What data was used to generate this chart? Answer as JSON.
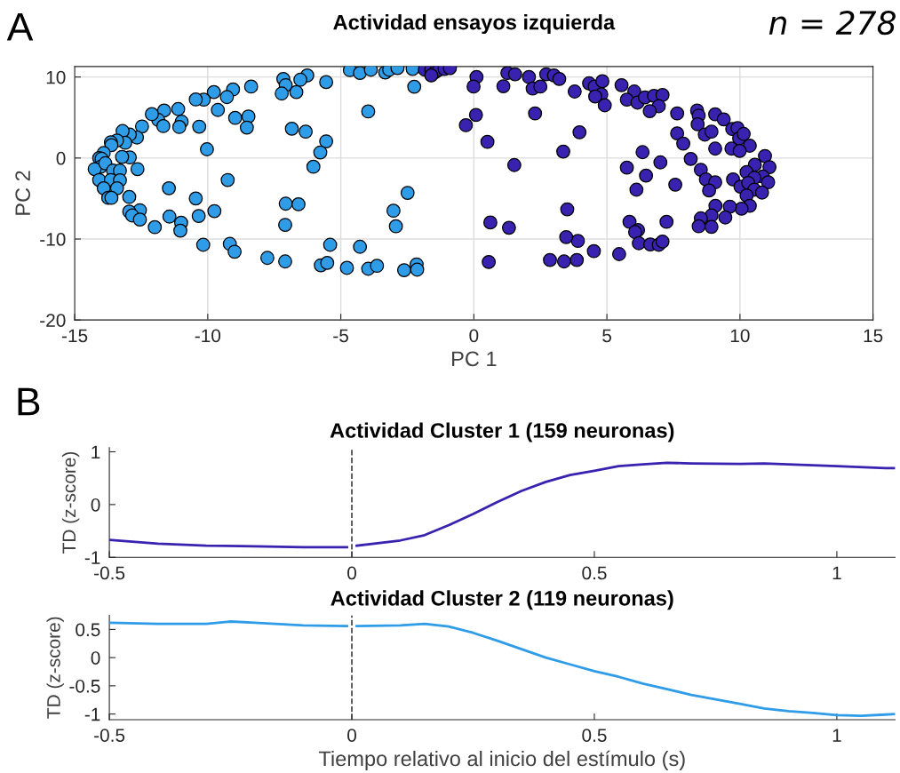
{
  "chart_data": [
    {
      "type": "scatter",
      "title": "Actividad ensayos izquierda",
      "xlabel": "PC 1",
      "ylabel": "PC 2",
      "annotations": [
        "A",
        "n = 278"
      ],
      "xlim": [
        -15,
        15
      ],
      "ylim": [
        -20,
        11.3
      ],
      "xticks": [
        -15,
        -10,
        -5,
        0,
        5,
        10,
        15
      ],
      "yticks": [
        -20,
        -10,
        0,
        10
      ],
      "grid": true,
      "marker": "circle",
      "series": [
        {
          "color": "#2f9ce8",
          "x": [
            -4.66,
            -4.28,
            -3.87,
            -3.33,
            -3.18,
            -2.87,
            -2.3,
            -2.24,
            -3.97,
            -5.55,
            -6.26,
            -6.52,
            -7.16,
            -7.07,
            -7.22,
            -6.67,
            -8.37,
            -9.05,
            -9.28,
            -9.77,
            -10.15,
            -10.45,
            -9.62,
            -8.97,
            -8.47,
            -8.53,
            -10.32,
            -10.03,
            -6.84,
            -6.32,
            -5.55,
            -5.77,
            -6.03,
            -9.25,
            -11.11,
            -10.98,
            -11.07,
            -11.64,
            -11.86,
            -11.67,
            -12.1,
            -12.47,
            -12.66,
            -12.93,
            -13.2,
            -13.1,
            -13.41,
            -13.64,
            -13.62,
            -13.91,
            -14.08,
            -13.99,
            -14.02,
            -14.25,
            -13.85,
            -13.56,
            -13.3,
            -12.93,
            -13.22,
            -12.64,
            -14.08,
            -13.64,
            -13.3,
            -13.91,
            -13.41,
            -13.74,
            -13.62,
            -12.95,
            -11.46,
            -10.45,
            -9.75,
            -10.34,
            -11.44,
            -11.0,
            -11.03,
            -11.99,
            -12.55,
            -12.95,
            -12.84,
            -12.55,
            -7.07,
            -6.59,
            -7.09,
            -10.17,
            -9.17,
            -8.99,
            -7.76,
            -7.09,
            -5.75,
            -5.51,
            -5.4,
            -4.77,
            -4.28,
            -3.97,
            -3.64,
            -2.62,
            -2.15,
            -2.13,
            -2.49,
            -3.02,
            -2.93
          ],
          "values": [
            10.85,
            10.5,
            10.9,
            10.56,
            10.9,
            11.1,
            11.0,
            8.8,
            5.75,
            9.37,
            10.2,
            9.66,
            9.76,
            9.0,
            7.96,
            8.14,
            8.82,
            8.46,
            7.52,
            8.14,
            7.2,
            7.23,
            5.93,
            4.95,
            5.13,
            3.76,
            3.87,
            1.08,
            3.62,
            3.25,
            2.06,
            0.69,
            -1.08,
            -2.71,
            6.04,
            4.48,
            3.83,
            5.86,
            4.7,
            3.94,
            5.42,
            3.9,
            2.53,
            2.89,
            3.33,
            1.88,
            2.17,
            1.95,
            1.59,
            0.61,
            0,
            -0.1,
            -1.08,
            -1.37,
            -0.65,
            -1.55,
            -1.55,
            0.07,
            0.14,
            -1.37,
            -2.71,
            -2.71,
            -2.75,
            -3.73,
            -3.73,
            -4.92,
            -4.92,
            -4.81,
            -3.73,
            -4.99,
            -6.55,
            -7.16,
            -7.23,
            -7.99,
            -8.97,
            -8.54,
            -6.44,
            -6.62,
            -7.09,
            -7.6,
            -5.64,
            -5.71,
            -8.25,
            -10.71,
            -10.6,
            -11.57,
            -12.33,
            -12.77,
            -13.24,
            -12.95,
            -10.71,
            -13.56,
            -10.96,
            -13.67,
            -13.31,
            -13.85,
            -13.13,
            -13.78,
            -4.3,
            -6.51,
            -8.43
          ]
        },
        {
          "color": "#3a22b0",
          "x": [
            -1.84,
            -1.6,
            -1.45,
            -1.3,
            -1.1,
            -0.9,
            -1.6,
            0.1,
            -0.01,
            0.08,
            -0.3,
            0.51,
            1.52,
            1.26,
            1.55,
            1.11,
            2.07,
            2.21,
            2.5,
            2.3,
            2.72,
            3.01,
            3.21,
            3.36,
            3.79,
            3.97,
            4.33,
            4.54,
            4.83,
            4.79,
            4.56,
            4.92,
            5.55,
            6.03,
            5.75,
            6.15,
            6.43,
            6.77,
            7.09,
            6.95,
            6.61,
            7.64,
            8.39,
            8.45,
            8.41,
            8.68,
            8.93,
            9.07,
            9.39,
            9.71,
            9.91,
            9.97,
            10.14,
            10.37,
            9.68,
            9.99,
            9.07,
            7.64,
            7.87,
            8.15,
            8.53,
            6.34,
            7.01,
            5.75,
            6.47,
            6.11,
            7.57,
            8.72,
            9.07,
            8.84,
            10.94,
            11.11,
            10.56,
            10.25,
            10.86,
            10.54,
            11.06,
            9.74,
            10.02,
            10.31,
            10.54,
            10.25,
            10.83,
            10.37,
            10.06,
            9.62,
            9.45,
            9.08,
            8.93,
            8.53,
            8.45,
            8.93,
            7.24,
            5.85,
            6.17,
            6.06,
            6.2,
            6.63,
            6.95,
            7.09,
            5.46,
            4.51,
            3.91,
            3.47,
            3.51,
            3.87,
            3.39,
            2.86,
            1.32,
            0.62,
            0.56
          ],
          "values": [
            10.9,
            10.9,
            10.6,
            10.9,
            11.0,
            11.1,
            10.2,
            10.0,
            8.82,
            5.32,
            4.05,
            1.99,
            -0.87,
            10.49,
            10.34,
            8.86,
            10.0,
            8.57,
            8.82,
            5.5,
            10.34,
            10.2,
            9.76,
            0.8,
            8.21,
            3.18,
            9.22,
            8.82,
            9.48,
            7.85,
            7.59,
            6.51,
            9.0,
            8.21,
            7.2,
            6.84,
            7.49,
            7.67,
            7.78,
            6.4,
            5.79,
            5.5,
            5.86,
            5.24,
            4.16,
            2.89,
            3.25,
            5.39,
            4.77,
            3.58,
            3.69,
            2.42,
            2.97,
            1.52,
            1.16,
            0.87,
            1.16,
            3.04,
            1.77,
            -0.11,
            -1.45,
            0.72,
            -0.54,
            -1.19,
            -2.17,
            -3.91,
            -3.29,
            -2.64,
            -3.0,
            -4.01,
            0.25,
            -1.12,
            -0.83,
            -1.74,
            -2.28,
            -2.46,
            -3.0,
            -2.64,
            -3.54,
            -3.07,
            -3.91,
            -4.63,
            -4.27,
            -5.9,
            -6.26,
            -6.0,
            -7.34,
            -5.9,
            -7.09,
            -7.45,
            -8.43,
            -8.5,
            -7.88,
            -7.88,
            -8.9,
            -9.15,
            -10.52,
            -10.67,
            -10.71,
            -10.31,
            -11.86,
            -11.5,
            -10.24,
            -9.76,
            -6.33,
            -12.59,
            -12.77,
            -12.59,
            -8.61,
            -7.96,
            -12.84
          ]
        }
      ]
    },
    {
      "type": "line",
      "title": "Actividad Cluster 1 (159 neuronas)",
      "ylabel": "TD (z-score)",
      "annotations": [
        "B"
      ],
      "xlim": [
        -0.5,
        1.12
      ],
      "ylim": [
        -1,
        1.08
      ],
      "xticks": [
        -0.5,
        0,
        0.5,
        1
      ],
      "yticks": [
        -1,
        0,
        1
      ],
      "grid": false,
      "ref_lines": [
        {
          "axis": "x",
          "value": 0,
          "color": "#404040",
          "line_style": "dashed"
        }
      ],
      "series": [
        {
          "color": "#3a22b0",
          "x": [
            -0.5,
            -0.4,
            -0.3,
            -0.2,
            -0.1,
            -0.01,
            0,
            0.01,
            0.1,
            0.15,
            0.2,
            0.25,
            0.3,
            0.35,
            0.4,
            0.45,
            0.5,
            0.55,
            0.6,
            0.65,
            0.7,
            0.8,
            0.85,
            0.9,
            1.0,
            1.1,
            1.12
          ],
          "values": [
            -0.67,
            -0.74,
            -0.78,
            -0.79,
            -0.81,
            -0.81,
            null,
            -0.78,
            -0.68,
            -0.58,
            -0.39,
            -0.18,
            0.05,
            0.26,
            0.43,
            0.56,
            0.64,
            0.73,
            0.76,
            0.79,
            0.78,
            0.77,
            0.78,
            0.76,
            0.73,
            0.69,
            0.69
          ]
        }
      ]
    },
    {
      "type": "line",
      "title": "Actividad Cluster 2 (119 neuronas)",
      "ylabel": "TD (z-score)",
      "xlabel": "Tiempo relativo al inicio del estímulo (s)",
      "xlim": [
        -0.5,
        1.12
      ],
      "ylim": [
        -1.1,
        0.75
      ],
      "xticks": [
        -0.5,
        0,
        0.5,
        1
      ],
      "yticks": [
        -1,
        -0.5,
        0,
        0.5
      ],
      "grid": false,
      "ref_lines": [
        {
          "axis": "x",
          "value": 0,
          "color": "#404040",
          "line_style": "dashed"
        }
      ],
      "series": [
        {
          "color": "#2f9ce8",
          "x": [
            -0.5,
            -0.4,
            -0.3,
            -0.25,
            -0.2,
            -0.1,
            -0.01,
            0,
            0.01,
            0.1,
            0.15,
            0.2,
            0.25,
            0.3,
            0.35,
            0.4,
            0.45,
            0.5,
            0.55,
            0.6,
            0.65,
            0.7,
            0.75,
            0.8,
            0.85,
            0.9,
            0.95,
            1.0,
            1.05,
            1.1,
            1.12
          ],
          "values": [
            0.62,
            0.6,
            0.6,
            0.64,
            0.62,
            0.57,
            0.56,
            null,
            0.56,
            0.57,
            0.6,
            0.55,
            0.44,
            0.3,
            0.15,
            0,
            -0.12,
            -0.24,
            -0.34,
            -0.46,
            -0.56,
            -0.66,
            -0.74,
            -0.82,
            -0.9,
            -0.95,
            -0.98,
            -1.02,
            -1.03,
            -1.01,
            -1.0
          ]
        }
      ]
    }
  ]
}
